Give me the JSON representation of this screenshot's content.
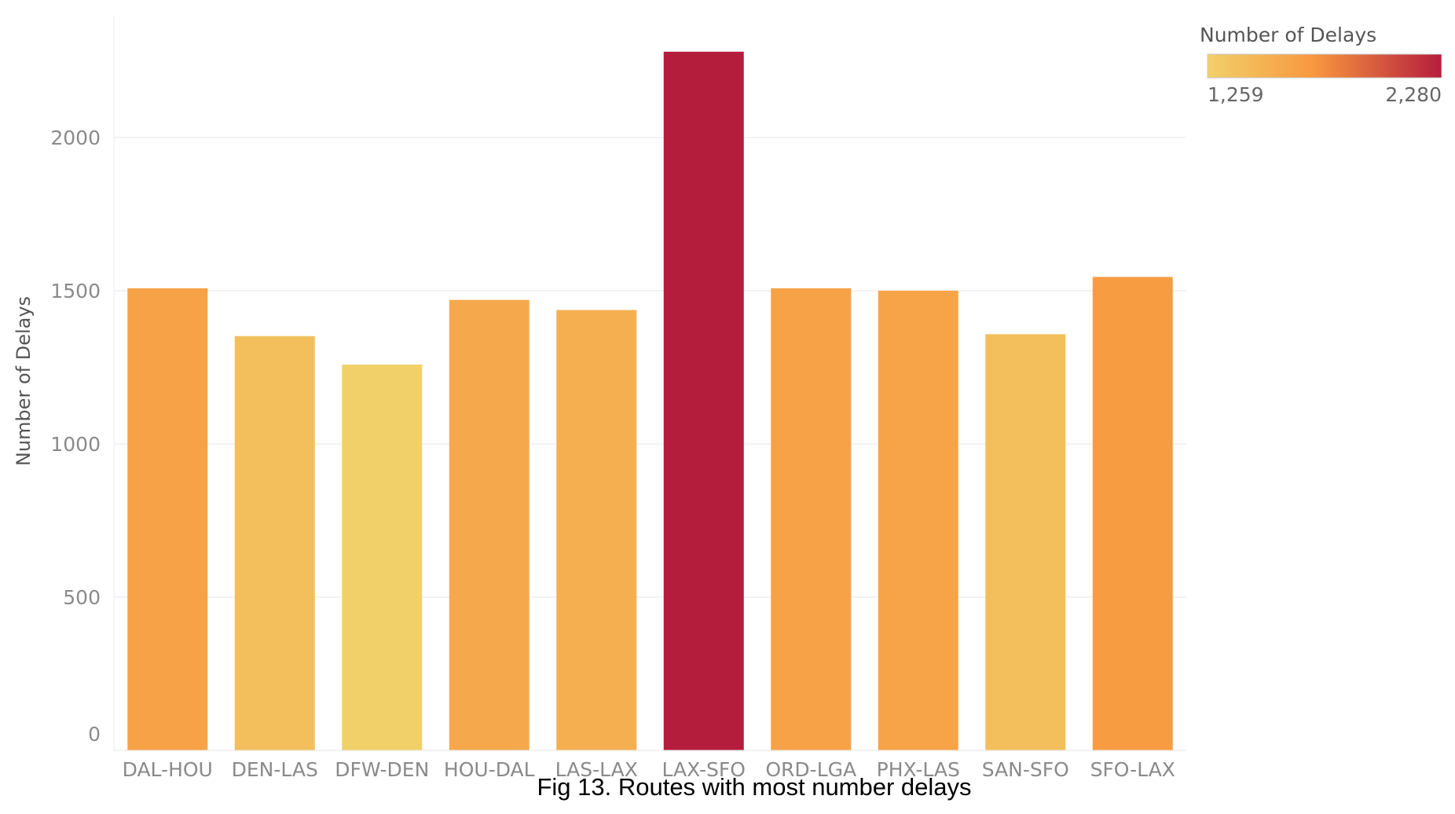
{
  "chart_data": {
    "type": "bar",
    "categories": [
      "DAL-HOU",
      "DEN-LAS",
      "DFW-DEN",
      "HOU-DAL",
      "LAS-LAX",
      "LAX-SFO",
      "ORD-LGA",
      "PHX-LAS",
      "SAN-SFO",
      "SFO-LAX"
    ],
    "values": [
      1508,
      1352,
      1259,
      1470,
      1437,
      2280,
      1508,
      1500,
      1358,
      1545
    ],
    "ylabel": "Number of Delays",
    "xlabel": "",
    "ylim": [
      0,
      2400
    ],
    "yticks": [
      0,
      500,
      1000,
      1500,
      2000
    ],
    "grid": true,
    "color_scale": {
      "title": "Number of Delays",
      "min_label": "1,259",
      "max_label": "2,280",
      "min_value": 1259,
      "max_value": 2280,
      "colors": [
        "#f1d06a",
        "#f8983f",
        "#b51d3d"
      ]
    },
    "legend_position": "top-right",
    "caption": "Fig 13. Routes with most number delays"
  }
}
